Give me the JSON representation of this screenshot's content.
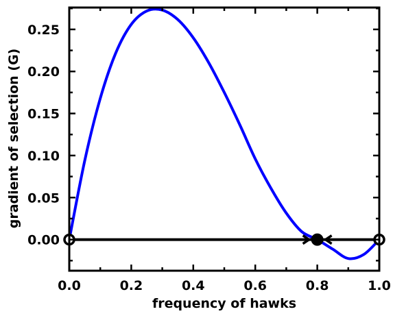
{
  "chart_data": {
    "type": "line",
    "title": "",
    "xlabel": "frequency of hawks",
    "ylabel": "gradient of selection (G)",
    "xlim": [
      0.0,
      1.0
    ],
    "ylim": [
      -0.037,
      0.276
    ],
    "x_ticks": [
      "0.0",
      "0.2",
      "0.4",
      "0.6",
      "0.8",
      "1.0"
    ],
    "y_ticks": [
      "0.00",
      "0.05",
      "0.10",
      "0.15",
      "0.20",
      "0.25"
    ],
    "grid": false,
    "series": [
      {
        "color": "#0000ff",
        "x": [
          0.0,
          0.05,
          0.1,
          0.15,
          0.2,
          0.25,
          0.3,
          0.35,
          0.4,
          0.45,
          0.5,
          0.55,
          0.6,
          0.65,
          0.7,
          0.75,
          0.8,
          0.85,
          0.9,
          0.95,
          1.0
        ],
        "y": [
          0.0,
          0.0941,
          0.168,
          0.222,
          0.256,
          0.2719,
          0.273,
          0.2617,
          0.24,
          0.2103,
          0.175,
          0.1366,
          0.096,
          0.0614,
          0.0315,
          0.0094,
          0.0,
          -0.0114,
          -0.0225,
          -0.0177,
          0.0
        ]
      }
    ],
    "equilibria": [
      {
        "x": 0.0,
        "y": 0.0,
        "stability": "unstable"
      },
      {
        "x": 0.8,
        "y": 0.0,
        "stability": "stable"
      },
      {
        "x": 1.0,
        "y": 0.0,
        "stability": "unstable"
      }
    ],
    "colors": {
      "curve": "#0000ff",
      "axis_line": "#000000",
      "stable_point": "#000000",
      "unstable_point_fill": "#ffffff"
    }
  }
}
